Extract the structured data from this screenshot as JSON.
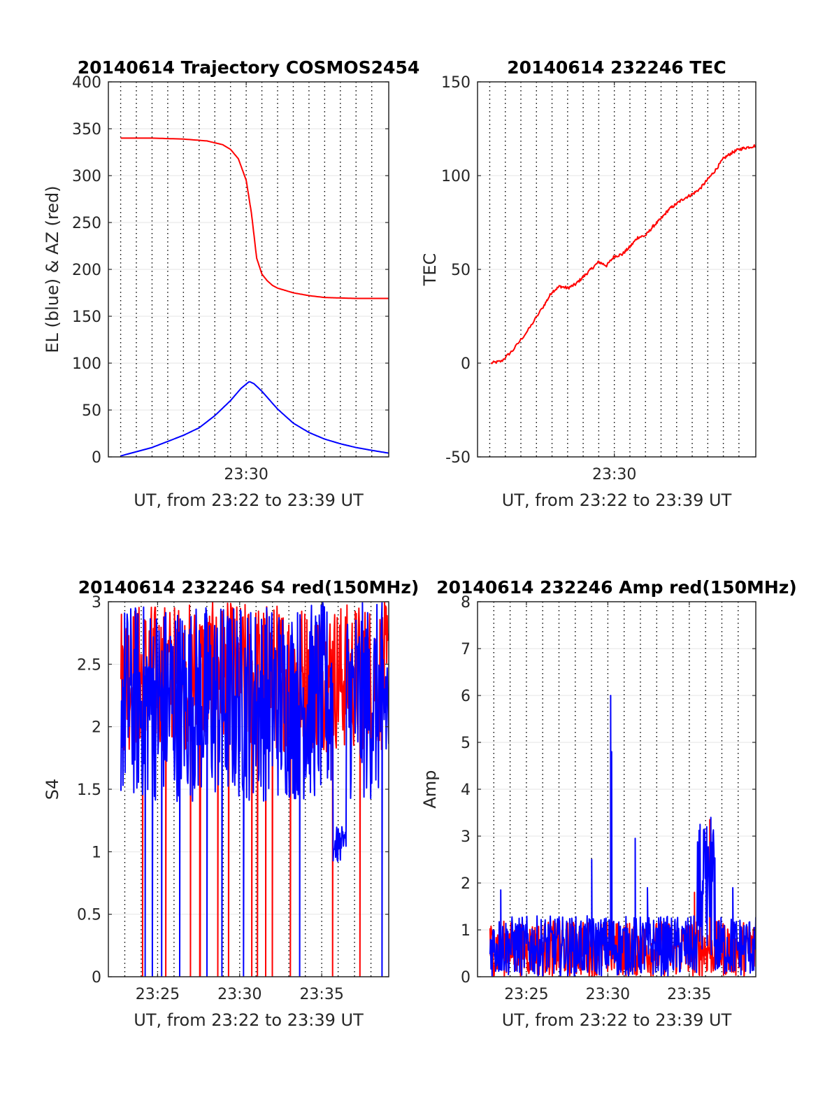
{
  "chart_data": [
    {
      "type": "line",
      "title": "20140614 Trajectory COSMOS2454",
      "xlabel": "UT, from 23:22 to 23:39 UT",
      "ylabel": "EL (blue) & AZ (red)",
      "xlim": [
        "23:21:13",
        "23:39:05"
      ],
      "ylim": [
        0,
        400
      ],
      "yticks": [
        0,
        50,
        100,
        150,
        200,
        250,
        300,
        350,
        400
      ],
      "xtick_labels": [
        {
          "x": "23:30",
          "label": "23:30"
        }
      ],
      "vgrid_dotted": [
        "23:22",
        "23:23",
        "23:24",
        "23:25",
        "23:26",
        "23:27",
        "23:28",
        "23:29",
        "23:30",
        "23:31",
        "23:32",
        "23:33",
        "23:34",
        "23:35",
        "23:36",
        "23:37",
        "23:38"
      ],
      "grid": true,
      "series": [
        {
          "color": "#ff0000",
          "x": [
            "23:22:00",
            "23:24:00",
            "23:26:00",
            "23:27:30",
            "23:28:30",
            "23:29:00",
            "23:29:30",
            "23:30:00",
            "23:30:20",
            "23:30:40",
            "23:31:00",
            "23:31:20",
            "23:31:40",
            "23:32:00",
            "23:33:00",
            "23:34:00",
            "23:35:00",
            "23:36:00",
            "23:37:00",
            "23:38:00",
            "23:39:05"
          ],
          "y": [
            340,
            340,
            339,
            337,
            333,
            328,
            318,
            295,
            260,
            212,
            195,
            188,
            183,
            180,
            175,
            172,
            170,
            169.5,
            169,
            169,
            169
          ]
        },
        {
          "color": "#0000ff",
          "x": [
            "23:22:00",
            "23:24:00",
            "23:26:00",
            "23:27:00",
            "23:28:00",
            "23:29:00",
            "23:29:40",
            "23:30:10",
            "23:30:15",
            "23:30:30",
            "23:31:00",
            "23:32:00",
            "23:33:00",
            "23:34:00",
            "23:35:00",
            "23:36:00",
            "23:37:00",
            "23:38:00",
            "23:39:05"
          ],
          "y": [
            1,
            10,
            23,
            31,
            44,
            60,
            73,
            80,
            80,
            78,
            70,
            51,
            36,
            26,
            19,
            14,
            10,
            7,
            4
          ]
        }
      ]
    },
    {
      "type": "line",
      "title": "20140614 232246 TEC",
      "xlabel": "UT, from 23:22 to 23:39 UT",
      "ylabel": "TEC",
      "xlim": [
        "23:21:13",
        "23:39:05"
      ],
      "ylim": [
        -50,
        150
      ],
      "yticks": [
        -50,
        0,
        50,
        100,
        150
      ],
      "xtick_labels": [
        {
          "x": "23:30",
          "label": "23:30"
        }
      ],
      "vgrid_dotted": [
        "23:22",
        "23:23",
        "23:24",
        "23:25",
        "23:26",
        "23:27",
        "23:28",
        "23:29",
        "23:30",
        "23:31",
        "23:32",
        "23:33",
        "23:34",
        "23:35",
        "23:36",
        "23:37",
        "23:38"
      ],
      "grid": true,
      "series": [
        {
          "color": "#ff0000",
          "x": [
            "23:22:05",
            "23:22:45",
            "23:23:30",
            "23:24:30",
            "23:25:30",
            "23:26:00",
            "23:26:30",
            "23:27:00",
            "23:27:30",
            "23:28:00",
            "23:28:30",
            "23:29:00",
            "23:29:30",
            "23:30:00",
            "23:30:30",
            "23:31:00",
            "23:31:30",
            "23:32:00",
            "23:32:30",
            "23:33:00",
            "23:33:30",
            "23:34:00",
            "23:34:30",
            "23:35:00",
            "23:35:30",
            "23:36:00",
            "23:36:30",
            "23:37:00",
            "23:37:30",
            "23:38:00",
            "23:38:30",
            "23:39:05"
          ],
          "y": [
            0,
            1,
            7,
            18,
            31,
            38,
            41,
            40,
            42,
            46,
            50,
            54,
            52,
            57,
            58,
            62,
            67,
            68,
            73,
            77,
            82,
            85,
            88,
            90,
            93,
            98,
            103,
            109,
            112,
            114,
            115,
            116
          ]
        }
      ]
    },
    {
      "type": "line",
      "title": "20140614 232246 S4 red(150MHz)",
      "xlabel": "UT, from 23:22 to 23:39 UT",
      "ylabel": "S4",
      "xlim": [
        "23:22:00",
        "23:39:05"
      ],
      "ylim": [
        0,
        3
      ],
      "yticks": [
        0,
        0.5,
        1,
        1.5,
        2,
        2.5,
        3
      ],
      "xtick_labels": [
        {
          "x": "23:25",
          "label": "23:25"
        },
        {
          "x": "23:30",
          "label": "23:30"
        },
        {
          "x": "23:35",
          "label": "23:35"
        }
      ],
      "vgrid_dotted": [
        "23:22",
        "23:23",
        "23:24",
        "23:25",
        "23:26",
        "23:27",
        "23:28",
        "23:29",
        "23:30",
        "23:31",
        "23:32",
        "23:33",
        "23:34",
        "23:35",
        "23:36",
        "23:37",
        "23:38"
      ],
      "grid": true,
      "series": [
        {
          "color": "#ff0000",
          "kind": "noise",
          "start": "23:22:46",
          "end": "23:39:05",
          "low": 1.8,
          "high": 3,
          "drops_to_zero": [
            "23:24:05",
            "23:25:30",
            "23:27:00",
            "23:27:35",
            "23:28:40",
            "23:29:20",
            "23:30:45",
            "23:31:05",
            "23:31:35",
            "23:32:00",
            "23:33:05",
            "23:35:40",
            "23:37:20"
          ]
        },
        {
          "color": "#0000ff",
          "kind": "noise",
          "start": "23:22:46",
          "end": "23:39:05",
          "low": 1.4,
          "high": 3,
          "drops_to_zero": [
            "23:24:15",
            "23:24:40",
            "23:25:15",
            "23:26:20",
            "23:28:00",
            "23:28:55",
            "23:30:15",
            "23:33:40",
            "23:38:40"
          ],
          "dip": {
            "from": "23:35:40",
            "to": "23:36:30",
            "level": 1.05
          }
        }
      ]
    },
    {
      "type": "line",
      "title": "20140614 232246 Amp red(150MHz)",
      "xlabel": "UT, from 23:22 to 23:39 UT",
      "ylabel": "Amp",
      "xlim": [
        "23:22:00",
        "23:39:05"
      ],
      "ylim": [
        0,
        8
      ],
      "yticks": [
        0,
        1,
        2,
        3,
        4,
        5,
        6,
        7,
        8
      ],
      "xtick_labels": [
        {
          "x": "23:25",
          "label": "23:25"
        },
        {
          "x": "23:30",
          "label": "23:30"
        },
        {
          "x": "23:35",
          "label": "23:35"
        }
      ],
      "vgrid_dotted": [
        "23:22",
        "23:23",
        "23:24",
        "23:25",
        "23:26",
        "23:27",
        "23:28",
        "23:29",
        "23:30",
        "23:31",
        "23:32",
        "23:33",
        "23:34",
        "23:35",
        "23:36",
        "23:37",
        "23:38"
      ],
      "grid": true,
      "series": [
        {
          "color": "#ff0000",
          "kind": "noise",
          "start": "23:22:46",
          "end": "23:39:05",
          "low": 0,
          "high": 1.2,
          "spikes": [
            {
              "x": "23:35:20",
              "y": 1.8
            },
            {
              "x": "23:36:15",
              "y": 3.35
            }
          ]
        },
        {
          "color": "#0000ff",
          "kind": "noise",
          "start": "23:22:46",
          "end": "23:39:05",
          "low": 0,
          "high": 1.3,
          "spikes": [
            {
              "x": "23:23:25",
              "y": 1.85
            },
            {
              "x": "23:29:00",
              "y": 2.5
            },
            {
              "x": "23:30:10",
              "y": 6.0
            },
            {
              "x": "23:30:15",
              "y": 4.8
            },
            {
              "x": "23:31:40",
              "y": 2.95
            },
            {
              "x": "23:32:25",
              "y": 1.9
            },
            {
              "x": "23:35:40",
              "y": 3.25
            },
            {
              "x": "23:36:05",
              "y": 3.2
            },
            {
              "x": "23:36:20",
              "y": 3.4
            },
            {
              "x": "23:37:40",
              "y": 1.9
            }
          ],
          "band": {
            "from": "23:35:30",
            "to": "23:36:35",
            "low": 0.4,
            "high": 3.2
          }
        }
      ]
    }
  ]
}
